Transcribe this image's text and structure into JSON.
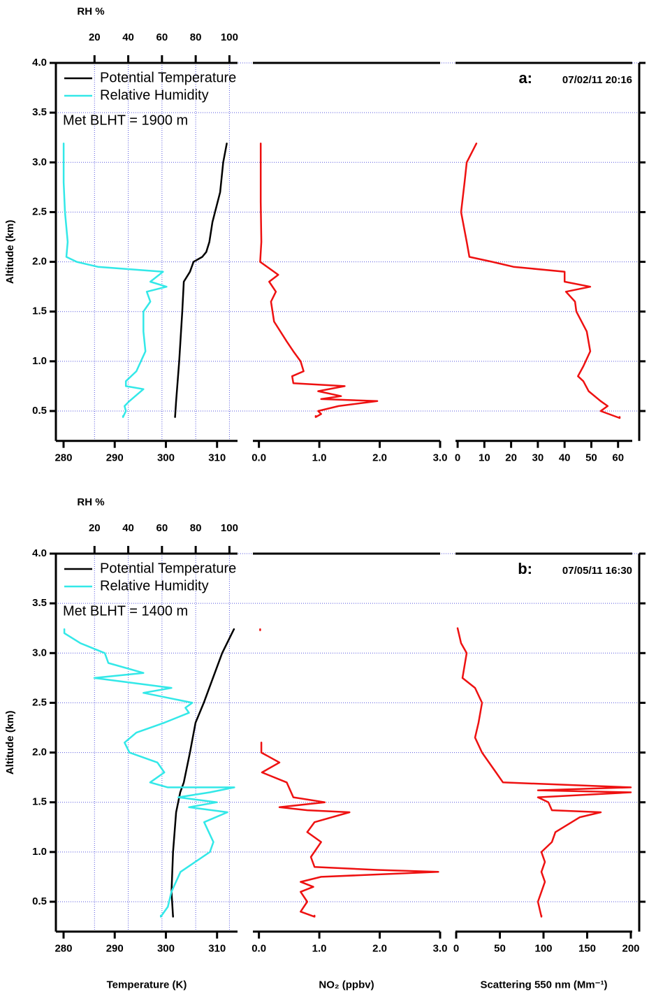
{
  "chart_data": [
    {
      "type": "line",
      "panel_label": "a:",
      "timestamp": "07/02/11 20:16",
      "annotation": "Met BLHT = 1900 m",
      "y_label": "Altitude  (km)",
      "grid": true,
      "ylim": [
        0.2,
        4.0
      ],
      "yticks": [
        {
          "value": 0.5,
          "label": "0.5"
        },
        {
          "value": 1.0,
          "label": "1.0"
        },
        {
          "value": 1.5,
          "label": "1.5"
        },
        {
          "value": 2.0,
          "label": "2.0"
        },
        {
          "value": 2.5,
          "label": "2.5"
        },
        {
          "value": 3.0,
          "label": "3.0"
        },
        {
          "value": 3.5,
          "label": "3.5"
        },
        {
          "value": 4.0,
          "label": "4.0"
        }
      ],
      "top_axis": {
        "label": "RH %",
        "xlim": [
          -2.9,
          104.8
        ],
        "xticks": [
          20,
          40,
          60,
          80,
          100
        ]
      },
      "subplots": [
        {
          "xlim": [
            278.5,
            314
          ],
          "xticks": [
            280,
            290,
            300,
            310
          ],
          "series": [
            {
              "name": "Potential Temperature",
              "color": "#000000",
              "values": [
                0.44,
                0.6,
                1.0,
                1.5,
                1.8,
                1.9,
                2.0,
                2.05,
                2.1,
                2.2,
                2.4,
                2.7,
                3.0,
                3.19
              ],
              "x": [
                301.8,
                302,
                302.6,
                303.2,
                303.5,
                304.7,
                305.4,
                307.1,
                307.9,
                308.5,
                309.1,
                310.6,
                311.2,
                311.9
              ]
            },
            {
              "name": "Relative Humidity",
              "color": "#33e8e8",
              "axis": "x2",
              "values": [
                0.44,
                0.5,
                0.55,
                0.6,
                0.72,
                0.75,
                0.8,
                0.9,
                1.1,
                1.3,
                1.5,
                1.6,
                1.7,
                1.75,
                1.8,
                1.9,
                1.95,
                2.0,
                2.05,
                2.2,
                2.5,
                2.8,
                3.19
              ],
              "x": [
                36.9,
                38.6,
                37.8,
                40.7,
                49,
                38.6,
                38.6,
                44.8,
                50.2,
                49,
                49,
                53.1,
                51,
                62.7,
                53.1,
                60.6,
                22,
                9.5,
                3.3,
                4.1,
                2.5,
                1.7,
                1.7
              ]
            }
          ]
        },
        {
          "xlim": [
            -0.1,
            3.0
          ],
          "xticks": [
            {
              "value": 0,
              "label": "0.0"
            },
            {
              "value": 1,
              "label": "1.0"
            },
            {
              "value": 2,
              "label": "2.0"
            },
            {
              "value": 3,
              "label": "3.0"
            }
          ],
          "series": [
            {
              "color": "#ee1111",
              "values": [
                0.44,
                0.47,
                0.5,
                0.55,
                0.6,
                0.62,
                0.65,
                0.7,
                0.75,
                0.78,
                0.85,
                0.9,
                1.0,
                1.1,
                1.2,
                1.4,
                1.6,
                1.7,
                1.8,
                1.87,
                2.0,
                2.2,
                2.6,
                3.19
              ],
              "x": [
                0.94,
                1.03,
                0.98,
                1.32,
                1.96,
                1.03,
                1.36,
                0.98,
                1.42,
                0.57,
                0.55,
                0.74,
                0.69,
                0.57,
                0.46,
                0.25,
                0.2,
                0.28,
                0.17,
                0.32,
                0.02,
                0.04,
                0.03,
                0.03
              ]
            }
          ]
        },
        {
          "xlim": [
            -0.8,
            65.3
          ],
          "xticks": [
            0,
            10,
            20,
            30,
            40,
            50,
            60
          ],
          "series": [
            {
              "color": "#ee1111",
              "values": [
                0.43,
                0.5,
                0.55,
                0.6,
                0.7,
                0.8,
                0.85,
                0.95,
                1.1,
                1.3,
                1.5,
                1.6,
                1.7,
                1.75,
                1.8,
                1.9,
                1.95,
                2.0,
                2.05,
                2.2,
                2.5,
                2.8,
                3.0,
                3.19
              ],
              "x": [
                60.6,
                53.5,
                56.1,
                53.5,
                49,
                47,
                45,
                47,
                49.6,
                48.3,
                44.4,
                43.9,
                40.5,
                49.6,
                40,
                40,
                20.9,
                13,
                4.4,
                3.4,
                1.3,
                2.6,
                3.4,
                7
              ]
            }
          ]
        }
      ]
    },
    {
      "type": "line",
      "panel_label": "b:",
      "timestamp": "07/05/11 16:30",
      "annotation": "Met BLHT = 1400 m",
      "y_label": "Altitude  (km)",
      "grid": true,
      "ylim": [
        0.2,
        4.0
      ],
      "yticks": [
        {
          "value": 0.5,
          "label": "0.5"
        },
        {
          "value": 1.0,
          "label": "1.0"
        },
        {
          "value": 1.5,
          "label": "1.5"
        },
        {
          "value": 2.0,
          "label": "2.0"
        },
        {
          "value": 2.5,
          "label": "2.5"
        },
        {
          "value": 3.0,
          "label": "3.0"
        },
        {
          "value": 3.5,
          "label": "3.5"
        },
        {
          "value": 4.0,
          "label": "4.0"
        }
      ],
      "top_axis": {
        "label": "RH %",
        "xlim": [
          -2.9,
          104.8
        ],
        "xticks": [
          20,
          40,
          60,
          80,
          100
        ]
      },
      "subplots": [
        {
          "x_label": "Temperature (K)",
          "xlim": [
            278.5,
            314
          ],
          "xticks": [
            280,
            290,
            300,
            310
          ],
          "series": [
            {
              "name": "Potential Temperature",
              "color": "#000000",
              "values": [
                0.35,
                0.6,
                1.0,
                1.4,
                1.6,
                1.7,
                2.0,
                2.3,
                2.5,
                2.75,
                3.0,
                3.24
              ],
              "x": [
                301.4,
                301.1,
                301.4,
                302,
                302.8,
                303.5,
                304.7,
                305.8,
                307.4,
                309.2,
                311,
                313.3
              ]
            },
            {
              "name": "Relative Humidity",
              "color": "#33e8e8",
              "axis": "x2",
              "values": [
                0.35,
                0.45,
                0.6,
                0.8,
                1.0,
                1.1,
                1.3,
                1.4,
                1.45,
                1.5,
                1.55,
                1.6,
                1.65,
                1.65,
                1.7,
                1.8,
                1.9,
                2.0,
                2.1,
                2.2,
                2.3,
                2.4,
                2.45,
                2.5,
                2.6,
                2.65,
                2.75,
                2.8,
                2.9,
                3.0,
                3.1,
                3.2,
                3.24
              ],
              "x": [
                59.3,
                63.5,
                65.6,
                71,
                88.4,
                90.5,
                85,
                98.8,
                76,
                92.5,
                69.7,
                88.4,
                102.9,
                63.5,
                53,
                61.4,
                57.3,
                40.7,
                37.8,
                44.8,
                61.4,
                76,
                73.9,
                78,
                49,
                65.6,
                19.9,
                49,
                28.2,
                26.1,
                11.6,
                2.1,
                2.1
              ]
            }
          ]
        },
        {
          "x_label": "NO₂  (ppbv)",
          "xlim": [
            -0.1,
            3.0
          ],
          "xticks": [
            {
              "value": 0,
              "label": "0.0"
            },
            {
              "value": 1,
              "label": "1.0"
            },
            {
              "value": 2,
              "label": "2.0"
            },
            {
              "value": 3,
              "label": "3.0"
            }
          ],
          "series": [
            {
              "color": "#ee1111",
              "values": [
                0.35,
                0.4,
                0.5,
                0.6,
                0.65,
                0.7,
                0.75,
                0.8,
                0.82,
                0.85,
                0.95,
                1.1,
                1.2,
                1.3,
                1.4,
                1.42,
                1.45,
                1.5,
                1.55,
                1.7,
                1.8,
                1.9,
                2.0,
                2.1,
                null,
                3.23
              ],
              "x": [
                0.92,
                0.69,
                0.8,
                0.69,
                0.9,
                0.69,
                1.03,
                2.97,
                1.96,
                0.92,
                0.86,
                1.03,
                0.8,
                0.92,
                1.5,
                0.8,
                0.34,
                1.09,
                0.57,
                0.46,
                0.05,
                0.34,
                0.04,
                0.04,
                null,
                0.02
              ]
            }
          ]
        },
        {
          "x_label": "Scattering 550 nm  (Mm⁻¹)",
          "xlim": [
            -0.8,
            201.6
          ],
          "xticks": [
            0,
            50,
            100,
            150,
            200
          ],
          "series": [
            {
              "color": "#ee1111",
              "values": [
                0.35,
                0.5,
                0.6,
                0.7,
                0.8,
                0.9,
                1.0,
                1.1,
                1.2,
                1.35,
                1.4,
                1.42,
                1.5,
                1.55,
                1.6,
                1.62,
                1.65,
                1.7,
                1.8,
                2.0,
                2.15,
                2.3,
                2.5,
                2.65,
                2.75,
                3.0,
                3.1,
                3.25
              ],
              "x": [
                97.6,
                93.6,
                97.6,
                101.6,
                97.6,
                101.6,
                97.6,
                109.6,
                113.6,
                141.6,
                165.6,
                109.6,
                105.6,
                93.6,
                200,
                93.6,
                200,
                53.6,
                45.6,
                29.6,
                21.6,
                25.6,
                29.6,
                21.6,
                7.2,
                12,
                5.6,
                1.6
              ]
            }
          ]
        }
      ]
    }
  ]
}
